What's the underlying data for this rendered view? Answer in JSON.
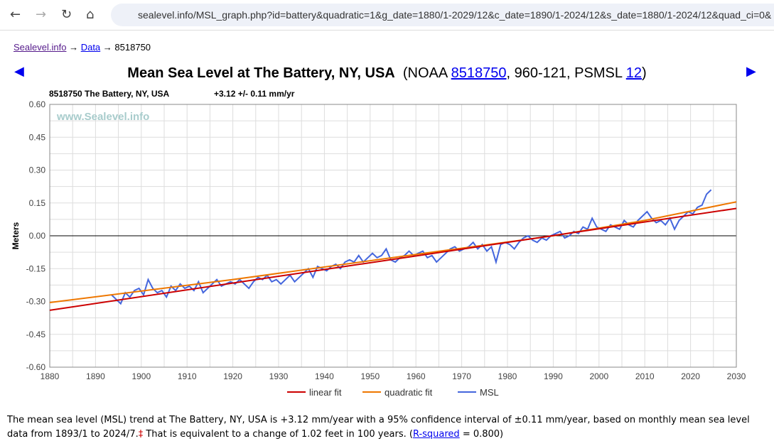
{
  "browser": {
    "url": "sealevel.info/MSL_graph.php?id=battery&quadratic=1&g_date=1880/1-2029/12&c_date=1890/1-2024/12&s_date=1880/1-2024/12&quad_ci=0&"
  },
  "breadcrumb": {
    "home": "Sealevel.info",
    "data": "Data",
    "current": "8518750",
    "sep": "→"
  },
  "page": {
    "title": "Mean Sea Level at The Battery, NY, USA",
    "paren_open": "(NOAA ",
    "noaa_id": "8518750",
    "mid": ", 960-121, PSMSL ",
    "psmsl_id": "12",
    "paren_close": ")"
  },
  "footer": {
    "text1": "The mean sea level (MSL) trend at The Battery, NY, USA is +3.12 mm/year with a 95% confidence interval of ±0.11 mm/year, based on monthly mean sea level data from 1893/1 to 2024/7.",
    "dagger": "‡",
    "text2": " That is equivalent to a change of 1.02 feet in 100 years. (",
    "rsq_link": "R-squared",
    "text3": " = 0.800)"
  },
  "chart_data": {
    "type": "line",
    "station_label": "8518750 The Battery, NY, USA",
    "trend_label": "+3.12 +/- 0.11 mm/yr",
    "watermark": "www.Sealevel.info",
    "ylabel": "Meters",
    "xlabel": "",
    "xlim": [
      1880,
      2030
    ],
    "ylim": [
      -0.6,
      0.6
    ],
    "xticks": [
      1880,
      1890,
      1900,
      1910,
      1920,
      1930,
      1940,
      1950,
      1960,
      1970,
      1980,
      1990,
      2000,
      2010,
      2020,
      2030
    ],
    "yticks": [
      "0.60",
      "0.45",
      "0.30",
      "0.15",
      "0.00",
      "-0.15",
      "-0.30",
      "-0.45",
      "-0.60"
    ],
    "grid": true,
    "legend_position": "bottom",
    "colors": {
      "linear": "#cc0000",
      "quadratic": "#ee7700",
      "msl": "#4466dd"
    },
    "series": [
      {
        "name": "linear fit",
        "x": [
          1880,
          2030
        ],
        "y": [
          -0.34,
          0.125
        ]
      },
      {
        "name": "quadratic fit",
        "x": [
          1880,
          1920,
          1960,
          1990,
          2010,
          2030
        ],
        "y": [
          -0.305,
          -0.2,
          -0.085,
          0.0,
          0.07,
          0.155
        ]
      },
      {
        "name": "MSL",
        "x_start": 1893,
        "x_step": 1,
        "y": [
          -0.27,
          -0.29,
          -0.31,
          -0.26,
          -0.28,
          -0.25,
          -0.24,
          -0.27,
          -0.2,
          -0.24,
          -0.26,
          -0.25,
          -0.28,
          -0.23,
          -0.25,
          -0.22,
          -0.24,
          -0.23,
          -0.25,
          -0.21,
          -0.26,
          -0.24,
          -0.22,
          -0.2,
          -0.23,
          -0.22,
          -0.21,
          -0.22,
          -0.2,
          -0.22,
          -0.24,
          -0.21,
          -0.19,
          -0.2,
          -0.18,
          -0.21,
          -0.2,
          -0.22,
          -0.2,
          -0.18,
          -0.21,
          -0.19,
          -0.17,
          -0.15,
          -0.19,
          -0.14,
          -0.15,
          -0.16,
          -0.14,
          -0.13,
          -0.15,
          -0.12,
          -0.11,
          -0.12,
          -0.09,
          -0.12,
          -0.1,
          -0.08,
          -0.1,
          -0.09,
          -0.06,
          -0.11,
          -0.12,
          -0.1,
          -0.09,
          -0.07,
          -0.09,
          -0.08,
          -0.07,
          -0.1,
          -0.09,
          -0.12,
          -0.1,
          -0.08,
          -0.06,
          -0.05,
          -0.07,
          -0.06,
          -0.05,
          -0.03,
          -0.06,
          -0.04,
          -0.07,
          -0.05,
          -0.12,
          -0.04,
          -0.03,
          -0.04,
          -0.06,
          -0.03,
          -0.01,
          0.0,
          -0.02,
          -0.03,
          -0.01,
          -0.02,
          0.0,
          0.01,
          0.02,
          -0.01,
          0.0,
          0.02,
          0.01,
          0.04,
          0.03,
          0.08,
          0.04,
          0.03,
          0.02,
          0.05,
          0.04,
          0.03,
          0.07,
          0.05,
          0.04,
          0.07,
          0.09,
          0.11,
          0.08,
          0.06,
          0.07,
          0.05,
          0.08,
          0.03,
          0.07,
          0.09,
          0.11,
          0.1,
          0.13,
          0.14,
          0.19,
          0.21
        ]
      }
    ]
  }
}
